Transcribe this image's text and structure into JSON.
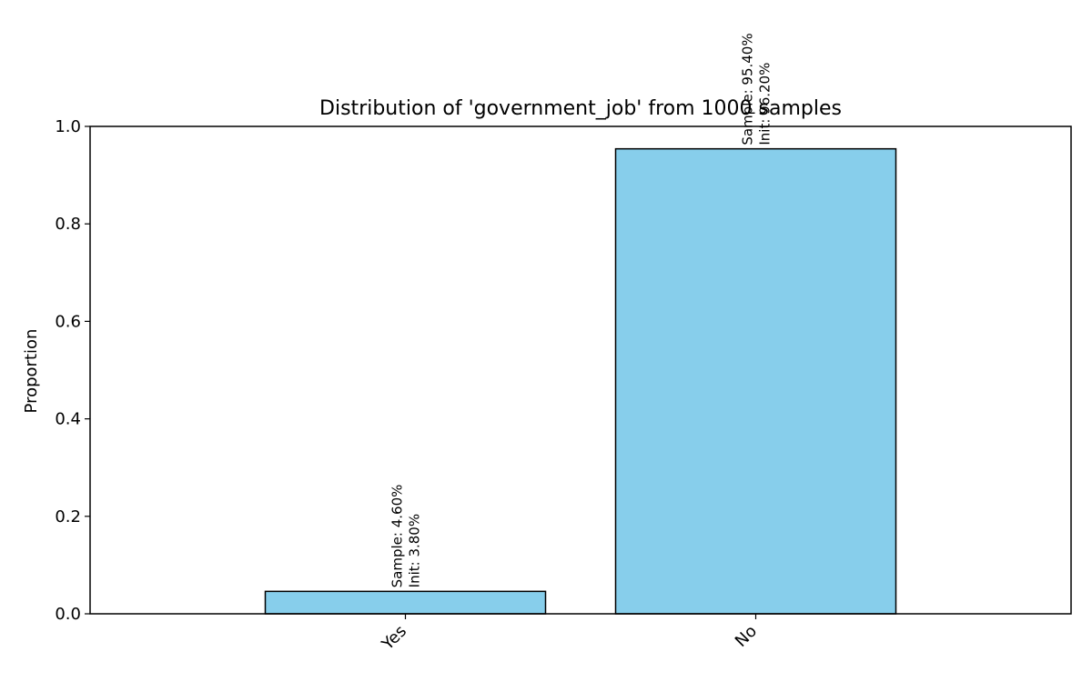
{
  "chart_data": {
    "type": "bar",
    "title": "Distribution of 'government_job' from 1000 samples",
    "xlabel": "",
    "ylabel": "Proportion",
    "categories": [
      "Yes",
      "No"
    ],
    "values": [
      0.046,
      0.954
    ],
    "annotations": [
      {
        "line1": "Sample: 4.60%",
        "line2": "Init: 3.80%"
      },
      {
        "line1": "Sample: 95.40%",
        "line2": "Init: 96.20%"
      }
    ],
    "ylim": [
      0,
      1.0
    ],
    "yticks": [
      "0.0",
      "0.2",
      "0.4",
      "0.6",
      "0.8",
      "1.0"
    ],
    "ytick_values": [
      0,
      0.2,
      0.4,
      0.6,
      0.8,
      1.0
    ],
    "grid": false,
    "legend": "none",
    "colors": {
      "bar_fill": "#87CEEB",
      "bar_edge": "#000000"
    }
  }
}
